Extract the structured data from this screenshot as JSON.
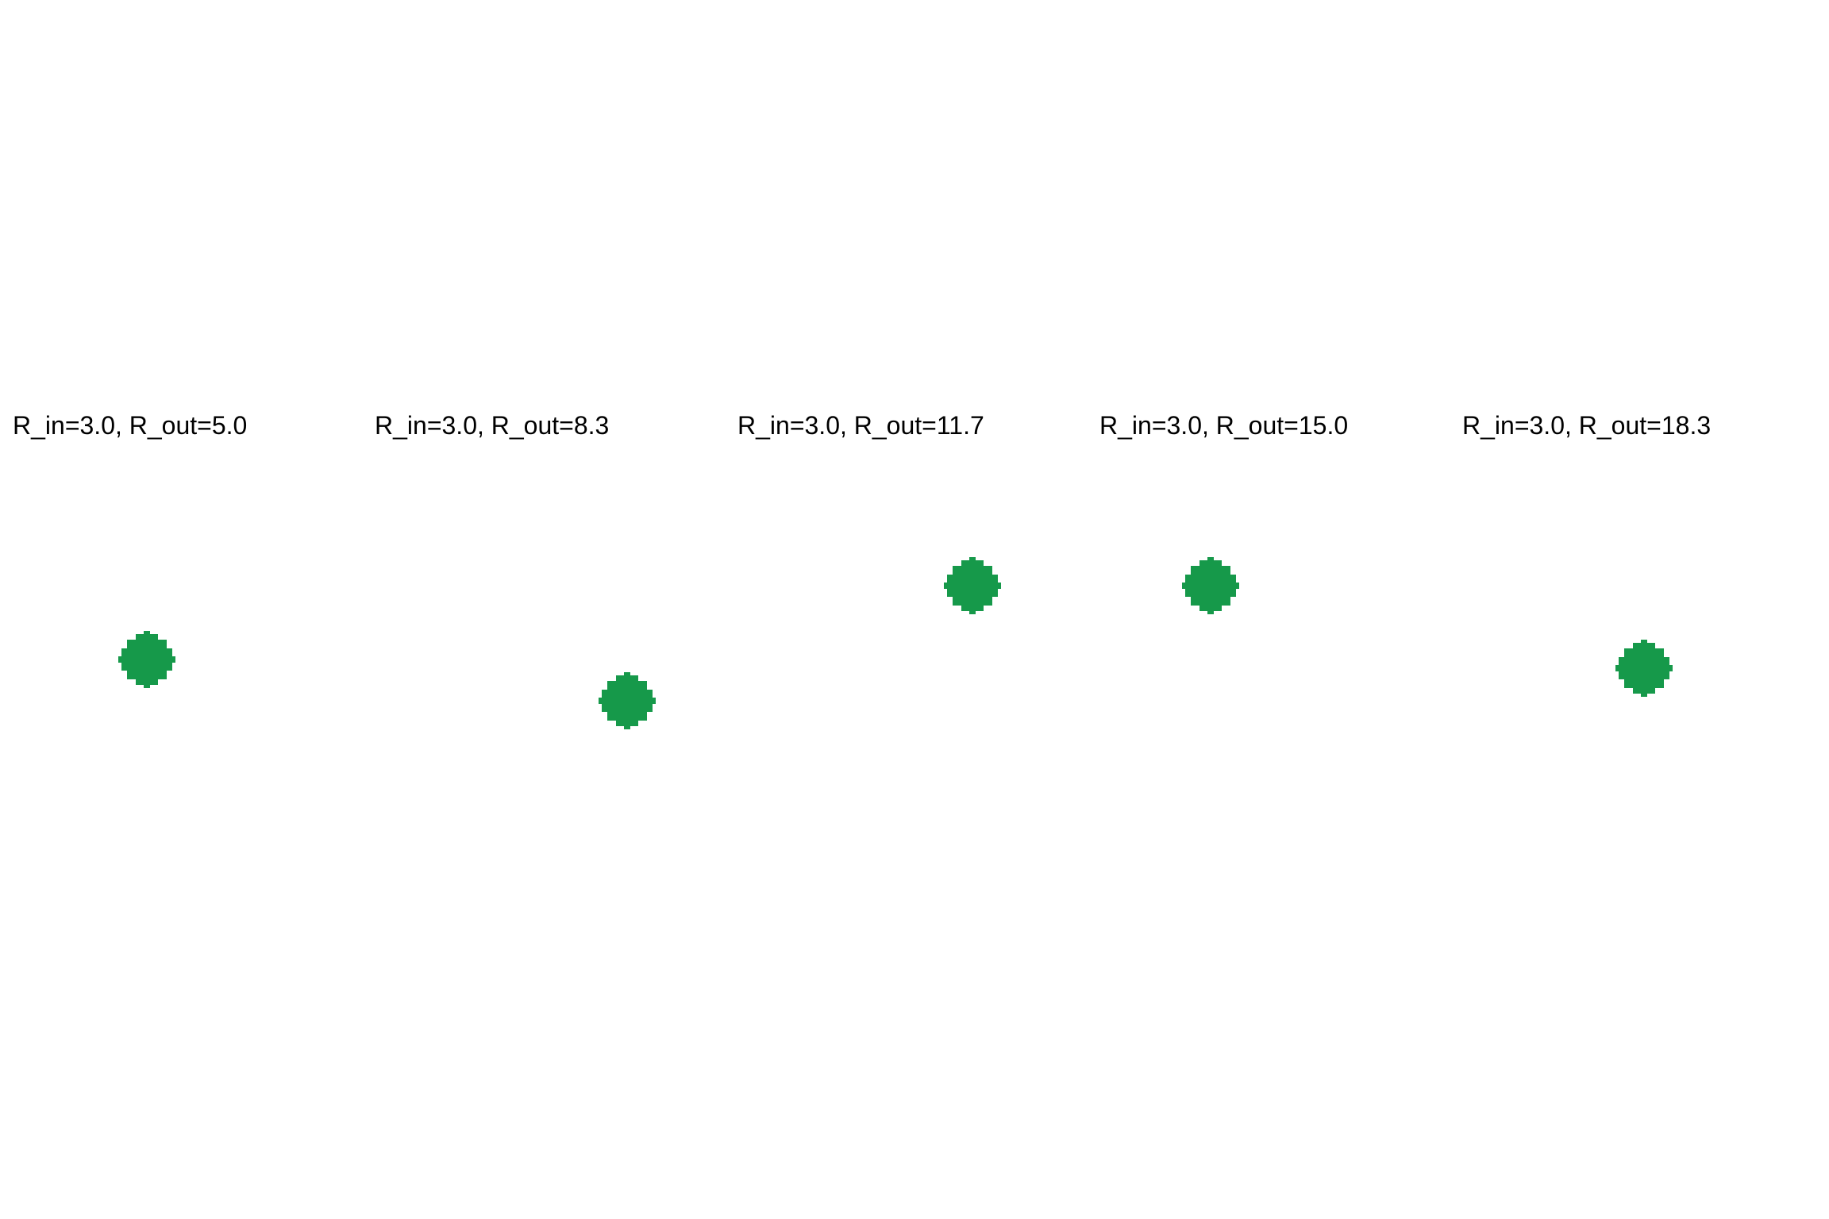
{
  "marker_color": "#16994a",
  "panels": [
    {
      "title": "R_in=3.0, R_out=5.0"
    },
    {
      "title": "R_in=3.0, R_out=8.3"
    },
    {
      "title": "R_in=3.0, R_out=11.7"
    },
    {
      "title": "R_in=3.0, R_out=15.0"
    },
    {
      "title": "R_in=3.0, R_out=18.3"
    }
  ]
}
